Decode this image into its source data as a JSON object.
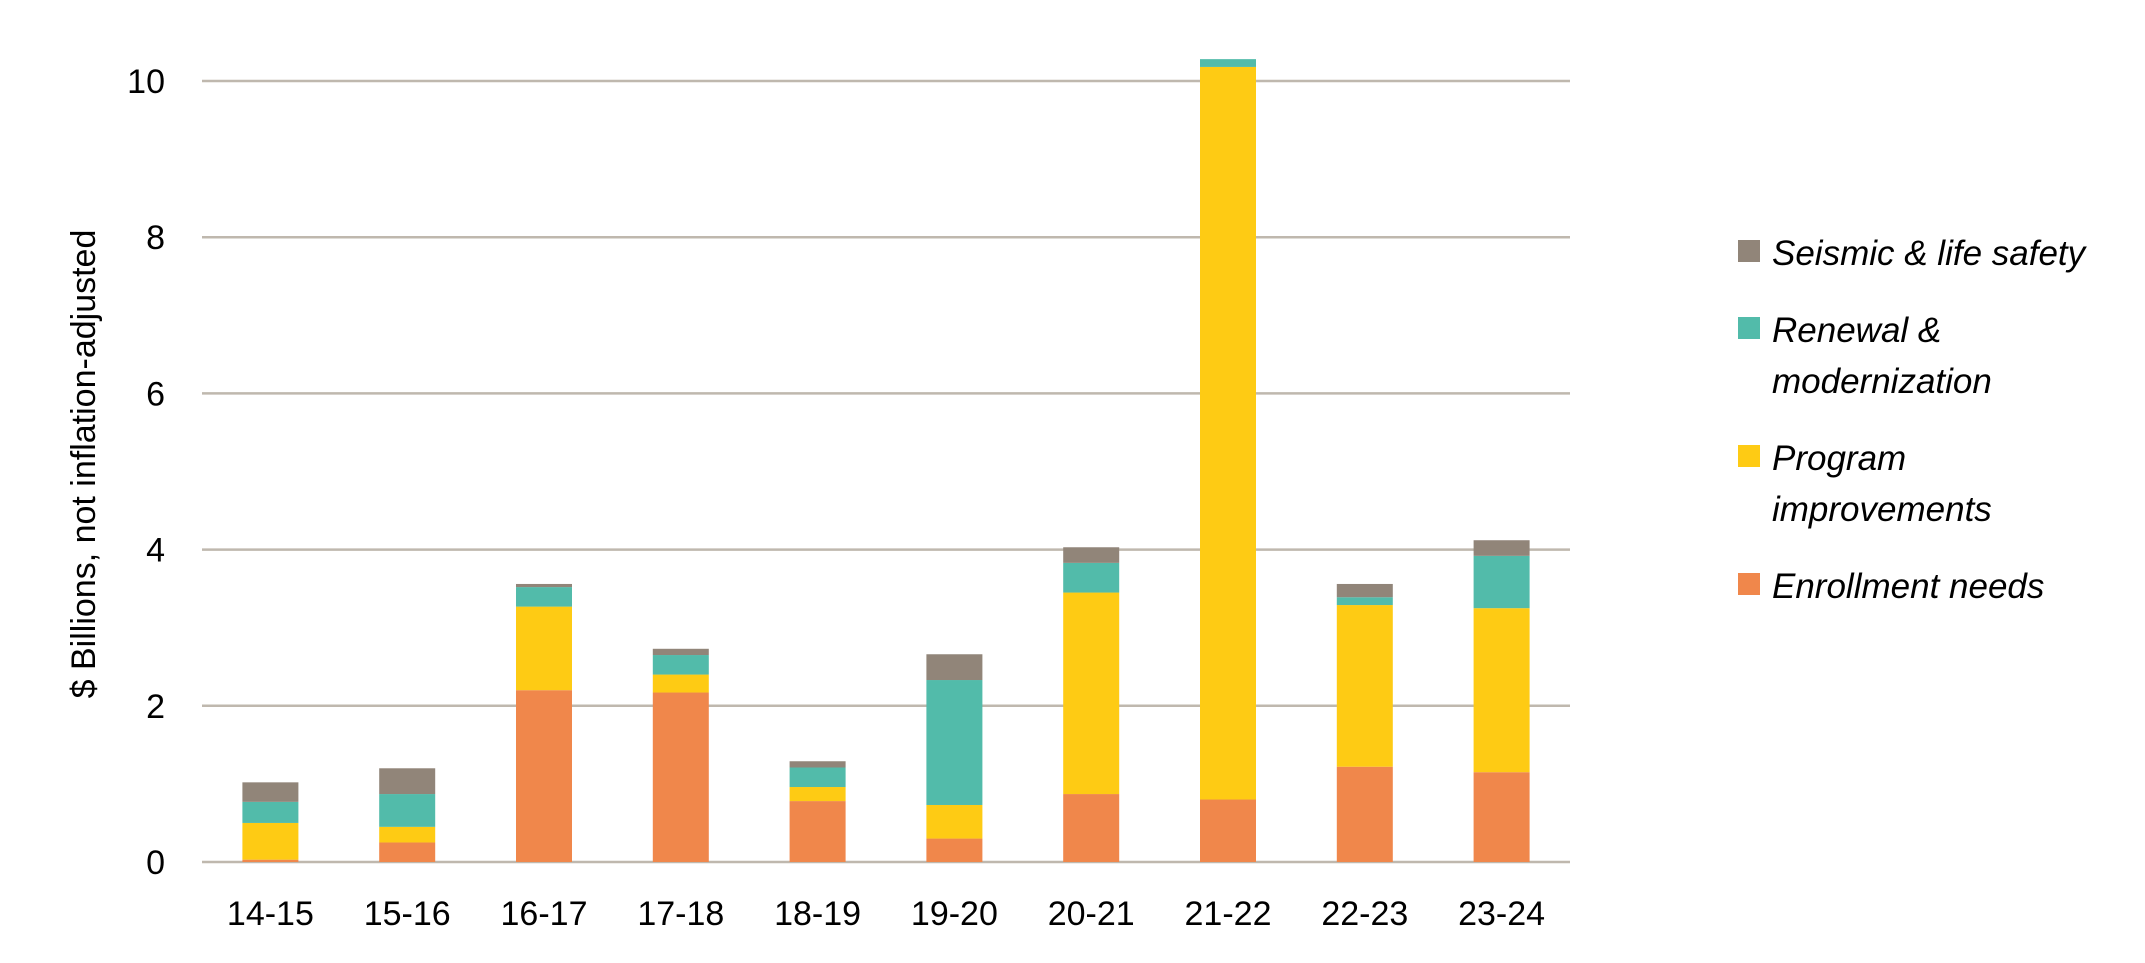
{
  "chart_data": {
    "type": "bar",
    "stacked": true,
    "title": "",
    "xlabel": "",
    "ylabel": "$ Billions, not inflation-adjusted",
    "ylim": [
      0,
      10.3
    ],
    "yticks": [
      0,
      2,
      4,
      6,
      8,
      10
    ],
    "grid": true,
    "legend_position": "right",
    "categories": [
      "14-15",
      "15-16",
      "16-17",
      "17-18",
      "18-19",
      "19-20",
      "20-21",
      "21-22",
      "22-23",
      "23-24"
    ],
    "series": [
      {
        "name": "Enrollment needs",
        "color": "#F0874B",
        "values": [
          0.03,
          0.25,
          2.2,
          2.17,
          0.78,
          0.3,
          0.87,
          0.8,
          1.22,
          1.15
        ]
      },
      {
        "name": "Program improvements",
        "color": "#FECB14",
        "values": [
          0.47,
          0.2,
          1.07,
          0.23,
          0.18,
          0.43,
          2.58,
          9.38,
          2.07,
          2.1
        ]
      },
      {
        "name": "Renewal & modernization",
        "color": "#52BBAA",
        "values": [
          0.27,
          0.42,
          0.25,
          0.25,
          0.25,
          1.6,
          0.38,
          0.1,
          0.1,
          0.67
        ]
      },
      {
        "name": "Seismic & life safety",
        "color": "#918579",
        "values": [
          0.25,
          0.33,
          0.04,
          0.08,
          0.08,
          0.33,
          0.2,
          0.0,
          0.17,
          0.2
        ]
      }
    ],
    "legend_order": [
      "Seismic & life safety",
      "Renewal & modernization",
      "Program improvements",
      "Enrollment needs"
    ]
  },
  "colors": {
    "gridline": "#BFB8AE",
    "axis": "#BFB8AE"
  }
}
